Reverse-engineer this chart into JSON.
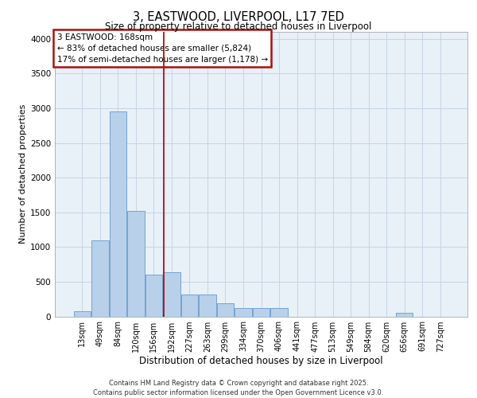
{
  "title_line1": "3, EASTWOOD, LIVERPOOL, L17 7ED",
  "title_line2": "Size of property relative to detached houses in Liverpool",
  "xlabel": "Distribution of detached houses by size in Liverpool",
  "ylabel": "Number of detached properties",
  "categories": [
    "13sqm",
    "49sqm",
    "84sqm",
    "120sqm",
    "156sqm",
    "192sqm",
    "227sqm",
    "263sqm",
    "299sqm",
    "334sqm",
    "370sqm",
    "406sqm",
    "441sqm",
    "477sqm",
    "513sqm",
    "549sqm",
    "584sqm",
    "620sqm",
    "656sqm",
    "691sqm",
    "727sqm"
  ],
  "values": [
    75,
    1100,
    2950,
    1520,
    600,
    640,
    320,
    320,
    185,
    120,
    115,
    115,
    0,
    0,
    0,
    0,
    0,
    0,
    50,
    0,
    0
  ],
  "bar_color": "#b8d0ea",
  "bar_edge_color": "#6699cc",
  "vline_color": "#aa1111",
  "vline_x": 4.58,
  "annotation_text": "3 EASTWOOD: 168sqm\n← 83% of detached houses are smaller (5,824)\n17% of semi-detached houses are larger (1,178) →",
  "annotation_edge_color": "#aa1111",
  "ylim": [
    0,
    4100
  ],
  "yticks": [
    0,
    500,
    1000,
    1500,
    2000,
    2500,
    3000,
    3500,
    4000
  ],
  "grid_color": "#c5d5e5",
  "plot_bg_color": "#e8f0f8",
  "footer_line1": "Contains HM Land Registry data © Crown copyright and database right 2025.",
  "footer_line2": "Contains public sector information licensed under the Open Government Licence v3.0."
}
